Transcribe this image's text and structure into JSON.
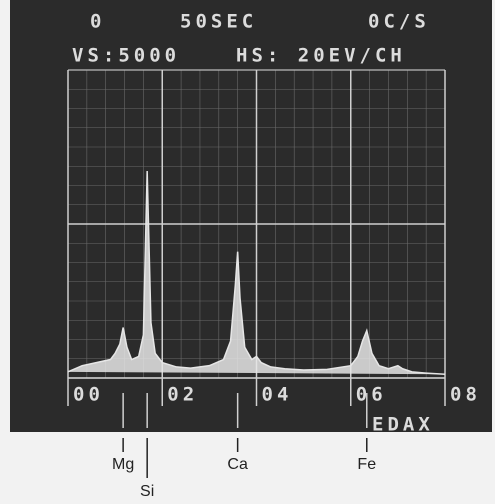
{
  "chart_data": {
    "type": "spectrum",
    "header": [
      "0",
      "50SEC",
      "0C/S",
      "VS:5000",
      "HS: 20EV/CH"
    ],
    "brand": "EDAX",
    "x": [
      0,
      0.3,
      0.6,
      0.9,
      1.0,
      1.1,
      1.17,
      1.25,
      1.35,
      1.5,
      1.6,
      1.68,
      1.76,
      1.85,
      2.0,
      2.3,
      2.6,
      3.0,
      3.3,
      3.45,
      3.55,
      3.6,
      3.65,
      3.75,
      3.9,
      4.0,
      4.1,
      4.3,
      4.6,
      5.0,
      5.5,
      6.0,
      6.15,
      6.25,
      6.34,
      6.45,
      6.6,
      6.8,
      7.0,
      7.1,
      7.3,
      7.6,
      8.0
    ],
    "values": [
      100,
      200,
      250,
      300,
      400,
      550,
      820,
      500,
      300,
      350,
      700,
      3360,
      900,
      400,
      250,
      180,
      160,
      200,
      300,
      600,
      1500,
      2050,
      1300,
      500,
      300,
      350,
      250,
      180,
      150,
      130,
      140,
      200,
      350,
      600,
      770,
      400,
      200,
      150,
      200,
      150,
      100,
      80,
      60
    ],
    "color": "#e6e6e6",
    "xlim": [
      0,
      8
    ],
    "ylim": [
      0,
      5000
    ],
    "xticks": [
      {
        "value": 0,
        "label": "00"
      },
      {
        "value": 2,
        "label": "02"
      },
      {
        "value": 4,
        "label": "04"
      },
      {
        "value": 6,
        "label": "06"
      },
      {
        "value": 8,
        "label": "08"
      }
    ],
    "markers": [
      {
        "label": "Mg",
        "x": 1.17
      },
      {
        "label": "Si",
        "x": 1.68
      },
      {
        "label": "Ca",
        "x": 3.6
      },
      {
        "label": "Fe",
        "x": 6.34
      }
    ]
  }
}
